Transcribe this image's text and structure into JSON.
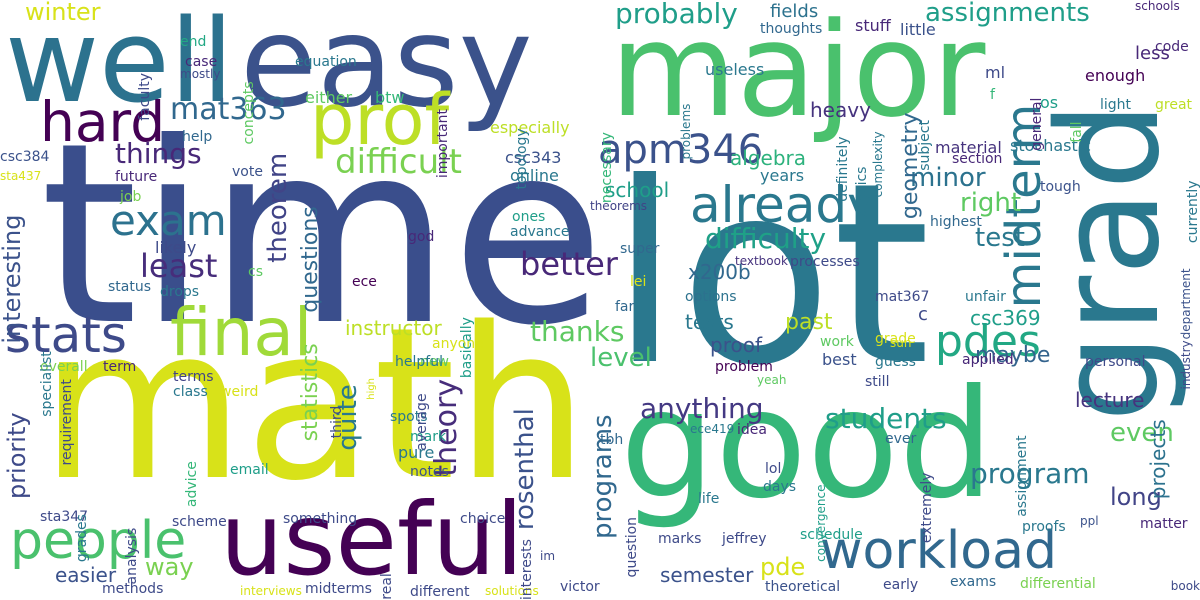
{
  "words": [
    {
      "text": "time",
      "color": "#3a4e8c",
      "rotate": false
    },
    {
      "text": "math",
      "color": "#d8e219",
      "rotate": false
    },
    {
      "text": "lot",
      "color": "#2a788e",
      "rotate": false
    },
    {
      "text": "good",
      "color": "#35b779",
      "rotate": false
    },
    {
      "text": "major",
      "color": "#4ac16d",
      "rotate": false
    },
    {
      "text": "easy",
      "color": "#3b528b",
      "rotate": false
    },
    {
      "text": "well",
      "color": "#2c728e",
      "rotate": false
    },
    {
      "text": "grad",
      "color": "#2a788e",
      "rotate": true
    },
    {
      "text": "useful",
      "color": "#440154",
      "rotate": false
    },
    {
      "text": "prof",
      "color": "#bddf26",
      "rotate": false
    },
    {
      "text": "people",
      "color": "#4ac16d",
      "rotate": false
    },
    {
      "text": "final",
      "color": "#a0da39",
      "rotate": false
    },
    {
      "text": "already",
      "color": "#2a788e",
      "rotate": false
    },
    {
      "text": "midterm",
      "color": "#2a788e",
      "rotate": true
    },
    {
      "text": "workload",
      "color": "#31688e",
      "rotate": false
    },
    {
      "text": "hard",
      "color": "#440154",
      "rotate": false
    },
    {
      "text": "stats",
      "color": "#3e4a89",
      "rotate": false
    },
    {
      "text": "pdes",
      "color": "#22a884",
      "rotate": false
    },
    {
      "text": "exam",
      "color": "#2c728e",
      "rotate": false
    },
    {
      "text": "apm346",
      "color": "#3b528b",
      "rotate": false
    },
    {
      "text": "least",
      "color": "#472d7b",
      "rotate": false
    },
    {
      "text": "difficult",
      "color": "#7ad151",
      "rotate": false
    },
    {
      "text": "better",
      "color": "#482878",
      "rotate": false
    },
    {
      "text": "mat363",
      "color": "#31688e",
      "rotate": false
    },
    {
      "text": "probably",
      "color": "#1f9e89",
      "rotate": false
    },
    {
      "text": "assignments",
      "color": "#1f9e89",
      "rotate": false
    },
    {
      "text": "things",
      "color": "#482878",
      "rotate": false
    },
    {
      "text": "difficulty",
      "color": "#1fa187",
      "rotate": false
    },
    {
      "text": "anything",
      "color": "#443983",
      "rotate": false
    },
    {
      "text": "students",
      "color": "#1f9e89",
      "rotate": false
    },
    {
      "text": "program",
      "color": "#2a788e",
      "rotate": false
    },
    {
      "text": "thanks",
      "color": "#5ec962",
      "rotate": false
    },
    {
      "text": "winter",
      "color": "#d8e219",
      "rotate": false
    },
    {
      "text": "theorem",
      "color": "#414487",
      "rotate": true
    },
    {
      "text": "theory",
      "color": "#472d7b",
      "rotate": true
    },
    {
      "text": "quite",
      "color": "#2a788e",
      "rotate": true
    },
    {
      "text": "rosenthal",
      "color": "#3b528b",
      "rotate": true
    },
    {
      "text": "programs",
      "color": "#31688e",
      "rotate": true
    },
    {
      "text": "interesting",
      "color": "#3b528b",
      "rotate": true
    },
    {
      "text": "priority",
      "color": "#3e4a89",
      "rotate": true
    },
    {
      "text": "level",
      "color": "#4ac16d",
      "rotate": false
    },
    {
      "text": "minor",
      "color": "#2c728e",
      "rotate": false
    },
    {
      "text": "right",
      "color": "#5ec962",
      "rotate": false
    },
    {
      "text": "test",
      "color": "#2a788e",
      "rotate": false
    },
    {
      "text": "even",
      "color": "#5ec962",
      "rotate": false
    },
    {
      "text": "long",
      "color": "#414487",
      "rotate": false
    },
    {
      "text": "easier",
      "color": "#3b528b",
      "rotate": false
    },
    {
      "text": "way",
      "color": "#7ad151",
      "rotate": false
    },
    {
      "text": "pde",
      "color": "#d8e219",
      "rotate": false
    },
    {
      "text": "semester",
      "color": "#3b528b",
      "rotate": false
    },
    {
      "text": "proof",
      "color": "#3b528b",
      "rotate": false
    },
    {
      "text": "tests",
      "color": "#2a788e",
      "rotate": false
    },
    {
      "text": "past",
      "color": "#bddf26",
      "rotate": false
    },
    {
      "text": "maybe",
      "color": "#33638d",
      "rotate": false
    },
    {
      "text": "csc369",
      "color": "#1f9e89",
      "rotate": false
    },
    {
      "text": "lecture",
      "color": "#46337e",
      "rotate": false
    },
    {
      "text": "instructor",
      "color": "#bddf26",
      "rotate": false
    },
    {
      "text": "questions",
      "color": "#31688e",
      "rotate": true
    },
    {
      "text": "statistics",
      "color": "#7ad151",
      "rotate": true
    },
    {
      "text": "algebra",
      "color": "#2db27d",
      "rotate": false
    },
    {
      "text": "geometry",
      "color": "#31688e",
      "rotate": true
    },
    {
      "text": "heavy",
      "color": "#46337e",
      "rotate": false
    },
    {
      "text": "school",
      "color": "#1f9e89",
      "rotate": false
    },
    {
      "text": "x200b",
      "color": "#31688e",
      "rotate": false
    },
    {
      "text": "projects",
      "color": "#2c728e",
      "rotate": true
    },
    {
      "text": "less",
      "color": "#482878",
      "rotate": false
    },
    {
      "text": "fields",
      "color": "#2c728e",
      "rotate": false
    },
    {
      "text": "stuff",
      "color": "#482878",
      "rotate": false
    },
    {
      "text": "csc343",
      "color": "#3b528b",
      "rotate": false
    },
    {
      "text": "especially",
      "color": "#bddf26",
      "rotate": false
    },
    {
      "text": "either",
      "color": "#5ec962",
      "rotate": false
    },
    {
      "text": "btw",
      "color": "#35b779",
      "rotate": false
    },
    {
      "text": "online",
      "color": "#2a788e",
      "rotate": false
    },
    {
      "text": "years",
      "color": "#2a788e",
      "rotate": false
    },
    {
      "text": "stochastic",
      "color": "#2a788e",
      "rotate": false
    },
    {
      "text": "material",
      "color": "#46337e",
      "rotate": false
    },
    {
      "text": "section",
      "color": "#482878",
      "rotate": false
    },
    {
      "text": "tough",
      "color": "#3b528b",
      "rotate": false
    },
    {
      "text": "highest",
      "color": "#31688e",
      "rotate": false
    },
    {
      "text": "enough",
      "color": "#440154",
      "rotate": false
    },
    {
      "text": "light",
      "color": "#2a788e",
      "rotate": false
    },
    {
      "text": "great",
      "color": "#bddf26",
      "rotate": false
    },
    {
      "text": "code",
      "color": "#482878",
      "rotate": false
    },
    {
      "text": "little",
      "color": "#3b528b",
      "rotate": false
    },
    {
      "text": "ml",
      "color": "#3e4a89",
      "rotate": false
    },
    {
      "text": "f",
      "color": "#35b779",
      "rotate": false
    },
    {
      "text": "os",
      "color": "#1f9e89",
      "rotate": false
    },
    {
      "text": "useless",
      "color": "#2a788e",
      "rotate": false
    },
    {
      "text": "thoughts",
      "color": "#31688e",
      "rotate": false
    },
    {
      "text": "schools",
      "color": "#482878",
      "rotate": false
    },
    {
      "text": "end",
      "color": "#22a884",
      "rotate": false
    },
    {
      "text": "case",
      "color": "#482878",
      "rotate": false
    },
    {
      "text": "mostly",
      "color": "#3e4a89",
      "rotate": false
    },
    {
      "text": "equation",
      "color": "#2a788e",
      "rotate": false
    },
    {
      "text": "help",
      "color": "#31688e",
      "rotate": false
    },
    {
      "text": "csc384",
      "color": "#3b528b",
      "rotate": false
    },
    {
      "text": "sta437",
      "color": "#d8e219",
      "rotate": false
    },
    {
      "text": "future",
      "color": "#482878",
      "rotate": false
    },
    {
      "text": "job",
      "color": "#7ad151",
      "rotate": false
    },
    {
      "text": "vote",
      "color": "#3b528b",
      "rotate": false
    },
    {
      "text": "likely",
      "color": "#3e4a89",
      "rotate": false
    },
    {
      "text": "drops",
      "color": "#2a788e",
      "rotate": false
    },
    {
      "text": "cs",
      "color": "#5ec962",
      "rotate": false
    },
    {
      "text": "ece",
      "color": "#440154",
      "rotate": false
    },
    {
      "text": "god",
      "color": "#482878",
      "rotate": false
    },
    {
      "text": "ones",
      "color": "#1f9e89",
      "rotate": false
    },
    {
      "text": "advance",
      "color": "#2a788e",
      "rotate": false
    },
    {
      "text": "theorems",
      "color": "#414487",
      "rotate": false
    },
    {
      "text": "super",
      "color": "#31688e",
      "rotate": false
    },
    {
      "text": "textbook",
      "color": "#46337e",
      "rotate": false
    },
    {
      "text": "lei",
      "color": "#d8e219",
      "rotate": false
    },
    {
      "text": "options",
      "color": "#2c728e",
      "rotate": false
    },
    {
      "text": "far",
      "color": "#31688e",
      "rotate": false
    },
    {
      "text": "status",
      "color": "#31688e",
      "rotate": false
    },
    {
      "text": "anyone",
      "color": "#d8e219",
      "rotate": false
    },
    {
      "text": "term",
      "color": "#482878",
      "rotate": false
    },
    {
      "text": "overall",
      "color": "#7ad151",
      "rotate": false
    },
    {
      "text": "new",
      "color": "#5ec962",
      "rotate": false
    },
    {
      "text": "helpful",
      "color": "#2a788e",
      "rotate": false
    },
    {
      "text": "terms",
      "color": "#414487",
      "rotate": false
    },
    {
      "text": "class",
      "color": "#2a788e",
      "rotate": false
    },
    {
      "text": "weird",
      "color": "#d8e219",
      "rotate": false
    },
    {
      "text": "spots",
      "color": "#2a788e",
      "rotate": false
    },
    {
      "text": "mark",
      "color": "#1f9e89",
      "rotate": false
    },
    {
      "text": "pure",
      "color": "#2a788e",
      "rotate": false
    },
    {
      "text": "notes",
      "color": "#3b528b",
      "rotate": false
    },
    {
      "text": "email",
      "color": "#1f9e89",
      "rotate": false
    },
    {
      "text": "sta347",
      "color": "#3e4a89",
      "rotate": false
    },
    {
      "text": "scheme",
      "color": "#3e4a89",
      "rotate": false
    },
    {
      "text": "something",
      "color": "#3e4a89",
      "rotate": false
    },
    {
      "text": "choice",
      "color": "#3e4a89",
      "rotate": false
    },
    {
      "text": "methods",
      "color": "#3e4a89",
      "rotate": false
    },
    {
      "text": "interviews",
      "color": "#d8e219",
      "rotate": false
    },
    {
      "text": "midterms",
      "color": "#3e4a89",
      "rotate": false
    },
    {
      "text": "different",
      "color": "#3e4a89",
      "rotate": false
    },
    {
      "text": "solutions",
      "color": "#d8e219",
      "rotate": false
    },
    {
      "text": "victor",
      "color": "#3e4a89",
      "rotate": false
    },
    {
      "text": "im",
      "color": "#3e4a89",
      "rotate": false
    },
    {
      "text": "mat367",
      "color": "#3e4a89",
      "rotate": false
    },
    {
      "text": "unfair",
      "color": "#2a788e",
      "rotate": false
    },
    {
      "text": "c",
      "color": "#3e4a89",
      "rotate": false
    },
    {
      "text": "sun",
      "color": "#d8e219",
      "rotate": false
    },
    {
      "text": "grade",
      "color": "#d8e219",
      "rotate": false
    },
    {
      "text": "work",
      "color": "#5ec962",
      "rotate": false
    },
    {
      "text": "best",
      "color": "#3b528b",
      "rotate": false
    },
    {
      "text": "guess",
      "color": "#2a788e",
      "rotate": false
    },
    {
      "text": "applied",
      "color": "#482878",
      "rotate": false
    },
    {
      "text": "personal",
      "color": "#3e4a89",
      "rotate": false
    },
    {
      "text": "problem",
      "color": "#440154",
      "rotate": false
    },
    {
      "text": "yeah",
      "color": "#5ec962",
      "rotate": false
    },
    {
      "text": "still",
      "color": "#3e4a89",
      "rotate": false
    },
    {
      "text": "tbh",
      "color": "#31688e",
      "rotate": false
    },
    {
      "text": "ece419",
      "color": "#2a788e",
      "rotate": false
    },
    {
      "text": "idea",
      "color": "#482878",
      "rotate": false
    },
    {
      "text": "ever",
      "color": "#31688e",
      "rotate": false
    },
    {
      "text": "lol",
      "color": "#3e4a89",
      "rotate": false
    },
    {
      "text": "days",
      "color": "#2a788e",
      "rotate": false
    },
    {
      "text": "life",
      "color": "#2a788e",
      "rotate": false
    },
    {
      "text": "marks",
      "color": "#3e4a89",
      "rotate": false
    },
    {
      "text": "jeffrey",
      "color": "#3e4a89",
      "rotate": false
    },
    {
      "text": "schedule",
      "color": "#1f9e89",
      "rotate": false
    },
    {
      "text": "theoretical",
      "color": "#3b528b",
      "rotate": false
    },
    {
      "text": "early",
      "color": "#3e4a89",
      "rotate": false
    },
    {
      "text": "exams",
      "color": "#31688e",
      "rotate": false
    },
    {
      "text": "differential",
      "color": "#7ad151",
      "rotate": false
    },
    {
      "text": "book",
      "color": "#3e4a89",
      "rotate": false
    },
    {
      "text": "proofs",
      "color": "#2a788e",
      "rotate": false
    },
    {
      "text": "ppl",
      "color": "#3b528b",
      "rotate": false
    },
    {
      "text": "matter",
      "color": "#482878",
      "rotate": false
    },
    {
      "text": "real",
      "color": "#3e4a89",
      "rotate": true
    },
    {
      "text": "interests",
      "color": "#3e4a89",
      "rotate": true
    },
    {
      "text": "question",
      "color": "#3e4a89",
      "rotate": true
    },
    {
      "text": "analysis",
      "color": "#3e4a89",
      "rotate": true
    },
    {
      "text": "advice",
      "color": "#35b779",
      "rotate": true
    },
    {
      "text": "grades",
      "color": "#2a788e",
      "rotate": true
    },
    {
      "text": "requirement",
      "color": "#3e4a89",
      "rotate": true
    },
    {
      "text": "specialist",
      "color": "#2a788e",
      "rotate": true
    },
    {
      "text": "average",
      "color": "#3e4a89",
      "rotate": true
    },
    {
      "text": "high",
      "color": "#d8e219",
      "rotate": true
    },
    {
      "text": "third",
      "color": "#3e4a89",
      "rotate": true
    },
    {
      "text": "basically",
      "color": "#1f9e89",
      "rotate": true
    },
    {
      "text": "topology",
      "color": "#2a788e",
      "rotate": true
    },
    {
      "text": "necessary",
      "color": "#35b779",
      "rotate": true
    },
    {
      "text": "important",
      "color": "#482878",
      "rotate": true
    },
    {
      "text": "problems",
      "color": "#2a788e",
      "rotate": true
    },
    {
      "text": "definitely",
      "color": "#2a788e",
      "rotate": true
    },
    {
      "text": "physics",
      "color": "#2a788e",
      "rotate": true
    },
    {
      "text": "complexity",
      "color": "#2a788e",
      "rotate": true
    },
    {
      "text": "subject",
      "color": "#2a788e",
      "rotate": true
    },
    {
      "text": "general",
      "color": "#482878",
      "rotate": true
    },
    {
      "text": "fall",
      "color": "#5ec962",
      "rotate": true
    },
    {
      "text": "currently",
      "color": "#2a788e",
      "rotate": true
    },
    {
      "text": "department",
      "color": "#3b528b",
      "rotate": true
    },
    {
      "text": "industry",
      "color": "#3e4a89",
      "rotate": true
    },
    {
      "text": "assignment",
      "color": "#2a788e",
      "rotate": true
    },
    {
      "text": "extremely",
      "color": "#3e4a89",
      "rotate": true
    },
    {
      "text": "convergence",
      "color": "#1f9e89",
      "rotate": true
    },
    {
      "text": "processes",
      "color": "#3e4a89",
      "rotate": false
    },
    {
      "text": "faculty",
      "color": "#3e4a89",
      "rotate": true
    },
    {
      "text": "concepts",
      "color": "#5ec962",
      "rotate": true
    }
  ]
}
